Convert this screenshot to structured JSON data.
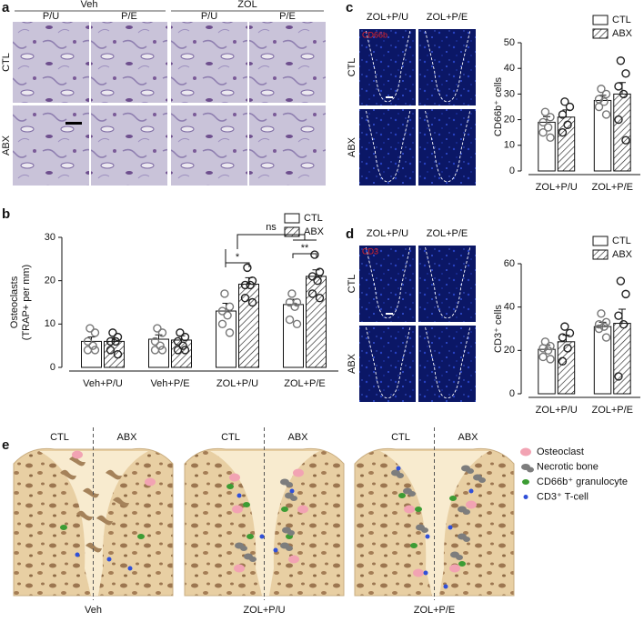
{
  "panel_a": {
    "label": "a",
    "groups": [
      "Veh",
      "ZOL"
    ],
    "columns": [
      "P/U",
      "P/E",
      "P/U",
      "P/E"
    ],
    "rows": [
      "CTL",
      "ABX"
    ]
  },
  "panel_c": {
    "label": "c",
    "columns": [
      "ZOL+P/U",
      "ZOL+P/E"
    ],
    "rows": [
      "CTL",
      "ABX"
    ],
    "stain": "CD66b"
  },
  "panel_d": {
    "label": "d",
    "columns": [
      "ZOL+P/U",
      "ZOL+P/E"
    ],
    "rows": [
      "CTL",
      "ABX"
    ],
    "stain": "CD3"
  },
  "panel_e": {
    "label": "e",
    "sides": [
      "CTL",
      "ABX"
    ],
    "groups": [
      "Veh",
      "ZOL+P/U",
      "ZOL+P/E"
    ],
    "legend": [
      "Osteoclast",
      "Necrotic bone",
      "CD66b⁺ granulocyte",
      "CD3⁺ T-cell"
    ],
    "legend_colors": [
      "#f2a3b3",
      "#7d7d7d",
      "#3c9c34",
      "#3050d8"
    ]
  },
  "chart_data": [
    {
      "type": "bar",
      "panel_label": "b",
      "ylabel": "Osteoclasts",
      "ylabel_sub": "(TRAP+ per mm)",
      "categories": [
        "Veh+P/U",
        "Veh+P/E",
        "ZOL+P/U",
        "ZOL+P/E"
      ],
      "ylim": [
        0,
        30
      ],
      "yticks": [
        0,
        10,
        20,
        30
      ],
      "series": [
        {
          "name": "CTL",
          "color": "#ffffff",
          "hatch": false,
          "values": [
            6,
            6.5,
            13,
            14.5
          ],
          "errors": [
            1,
            1,
            1.8,
            1.2
          ],
          "points": [
            [
              9,
              8,
              6,
              5,
              4,
              4
            ],
            [
              9,
              8,
              6,
              5,
              4,
              4
            ],
            [
              17,
              14,
              13,
              12,
              10,
              8
            ],
            [
              17,
              15,
              15,
              14,
              11,
              10
            ]
          ]
        },
        {
          "name": "ABX",
          "color": "#ffffff",
          "hatch": true,
          "values": [
            6,
            6.3,
            19.2,
            21
          ],
          "errors": [
            0.8,
            1,
            1.5,
            1.5
          ],
          "points": [
            [
              8,
              7,
              6,
              6,
              4,
              3
            ],
            [
              8,
              7,
              6,
              5,
              4,
              4
            ],
            [
              23,
              20,
              19,
              19,
              16,
              15
            ],
            [
              26,
              22,
              21,
              20,
              17,
              16
            ]
          ]
        }
      ],
      "annotations": [
        "*",
        "**",
        "ns"
      ]
    },
    {
      "type": "bar",
      "panel_label": "",
      "ylabel": "CD66b⁺ cells",
      "categories": [
        "ZOL+P/U",
        "ZOL+P/E"
      ],
      "ylim": [
        0,
        50
      ],
      "yticks": [
        0,
        10,
        20,
        30,
        40,
        50
      ],
      "series": [
        {
          "name": "CTL",
          "color": "#ffffff",
          "hatch": false,
          "values": [
            19,
            27.5
          ],
          "errors": [
            2.2,
            2
          ],
          "points": [
            [
              23,
              21,
              19,
              17,
              15,
              13
            ],
            [
              32,
              30,
              28,
              27,
              25,
              22
            ]
          ]
        },
        {
          "name": "ABX",
          "color": "#ffffff",
          "hatch": true,
          "values": [
            21,
            30
          ],
          "errors": [
            2.8,
            4.5
          ],
          "points": [
            [
              27,
              25,
              22,
              18,
              15
            ],
            [
              43,
              38,
              33,
              30,
              20,
              12
            ]
          ]
        }
      ]
    },
    {
      "type": "bar",
      "ylabel": "CD3⁺ cells",
      "categories": [
        "ZOL+P/U",
        "ZOL+P/E"
      ],
      "ylim": [
        0,
        60
      ],
      "yticks": [
        0,
        20,
        40,
        60
      ],
      "series": [
        {
          "name": "CTL",
          "color": "#ffffff",
          "hatch": false,
          "values": [
            20.5,
            31
          ],
          "errors": [
            2,
            2
          ],
          "points": [
            [
              24,
              22,
              21,
              20,
              17,
              16
            ],
            [
              37,
              33,
              32,
              31,
              30,
              26
            ]
          ]
        },
        {
          "name": "ABX",
          "color": "#ffffff",
          "hatch": true,
          "values": [
            24,
            32.5
          ],
          "errors": [
            3,
            6.5
          ],
          "points": [
            [
              31,
              28,
              26,
              21,
              15
            ],
            [
              52,
              46,
              36,
              32,
              8
            ]
          ]
        }
      ]
    }
  ]
}
